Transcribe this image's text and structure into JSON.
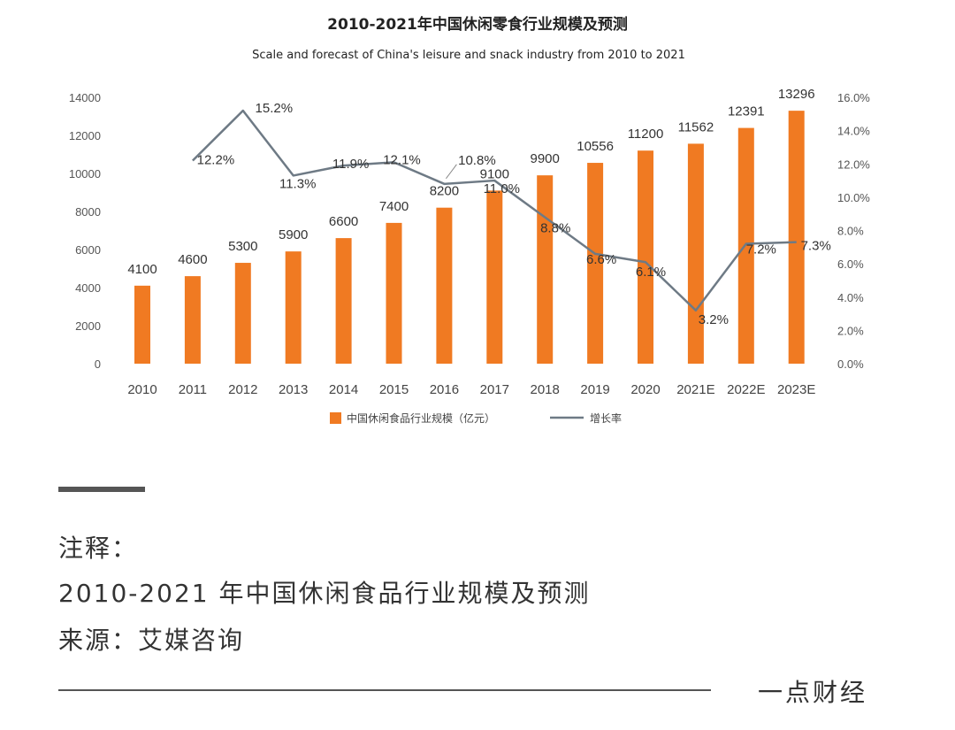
{
  "chart_data": {
    "type": "bar",
    "title": "2010-2021年中国休闲零食行业规模及预测",
    "subtitle": "Scale and forecast of China's leisure and snack industry from 2010 to 2021",
    "categories": [
      "2010",
      "2011",
      "2012",
      "2013",
      "2014",
      "2015",
      "2016",
      "2017",
      "2018",
      "2019",
      "2020",
      "2021E",
      "2022E",
      "2023E"
    ],
    "series": [
      {
        "name": "中国休闲食品行业规模（亿元）",
        "kind": "bar",
        "axis": "left",
        "color": "#F07A22",
        "values": [
          4100,
          4600,
          5300,
          5900,
          6600,
          7400,
          8200,
          9100,
          9900,
          10556,
          11200,
          11562,
          12391,
          13296
        ],
        "labels": [
          "4100",
          "4600",
          "5300",
          "5900",
          "6600",
          "7400",
          "8200",
          "9100",
          "9900",
          "10556",
          "11200",
          "11562",
          "12391",
          "13296"
        ]
      },
      {
        "name": "增长率",
        "kind": "line",
        "axis": "right",
        "color": "#6E7A85",
        "values": [
          null,
          12.2,
          15.2,
          11.3,
          11.9,
          12.1,
          10.8,
          11.0,
          8.8,
          6.6,
          6.1,
          3.2,
          7.2,
          7.3
        ],
        "labels": [
          null,
          "12.2%",
          "15.2%",
          "11.3%",
          "11.9%",
          "12.1%",
          "10.8%",
          "11.0%",
          "8.8%",
          "6.6%",
          "6.1%",
          "3.2%",
          "7.2%",
          "7.3%"
        ]
      }
    ],
    "y_left": {
      "min": 0,
      "max": 14000,
      "ticks": [
        "0",
        "2000",
        "4000",
        "6000",
        "8000",
        "10000",
        "12000",
        "14000"
      ]
    },
    "y_right": {
      "min": 0,
      "max": 16,
      "ticks": [
        "0.0%",
        "2.0%",
        "4.0%",
        "6.0%",
        "8.0%",
        "10.0%",
        "12.0%",
        "14.0%",
        "16.0%"
      ]
    },
    "grid": false,
    "legend": "bottom-center"
  },
  "notes": {
    "heading": "注释：",
    "line1": "2010-2021 年中国休闲食品行业规模及预测",
    "line2": "来源：艾媒咨询"
  },
  "brand": "一点财经"
}
